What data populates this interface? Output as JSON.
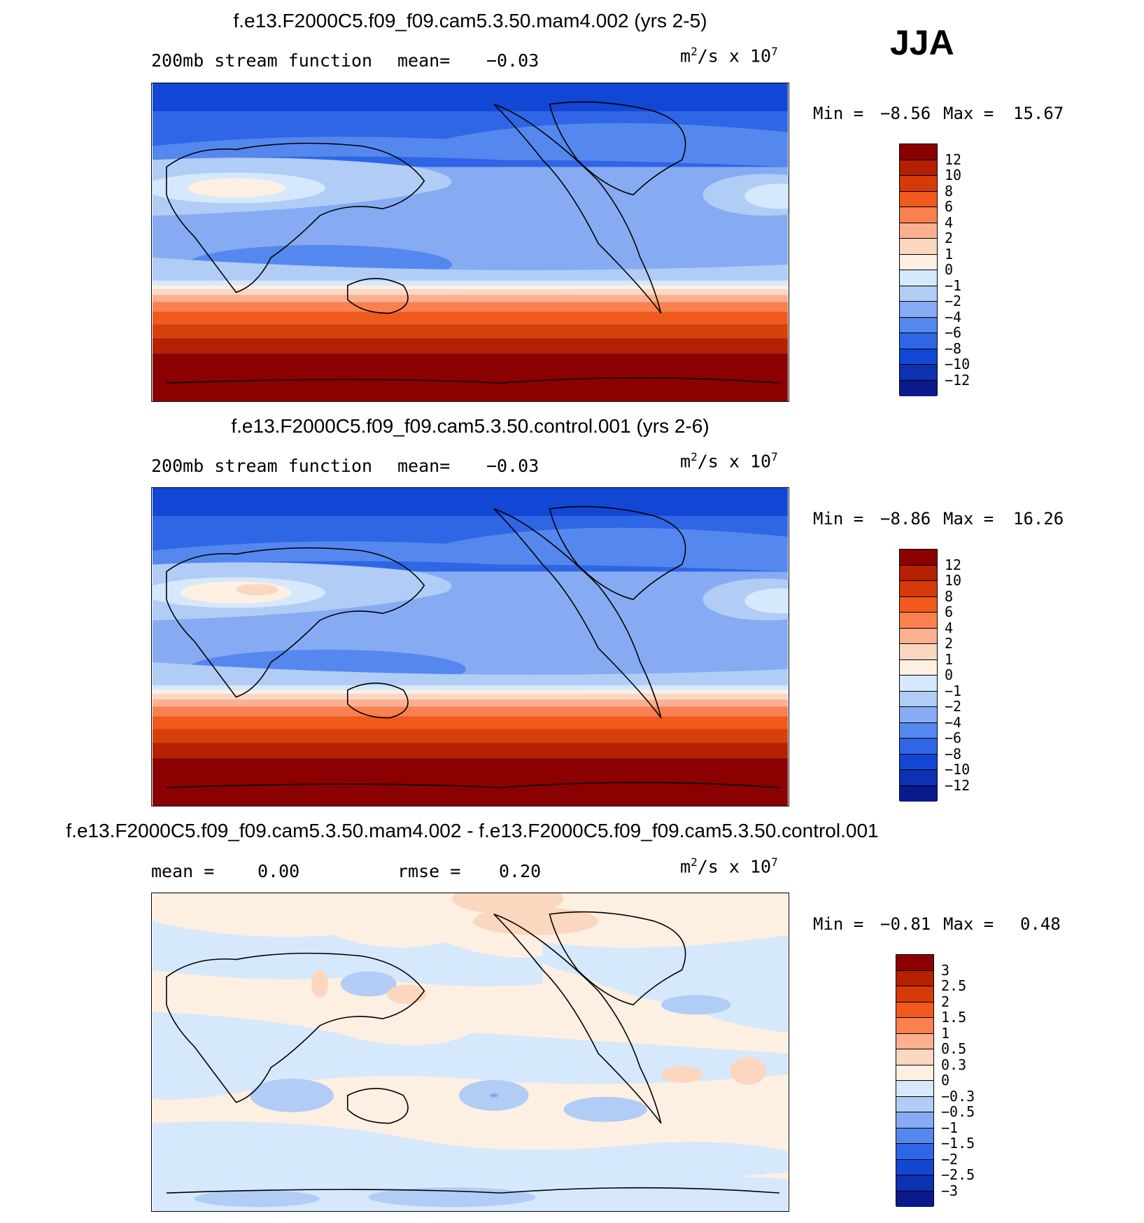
{
  "season": "JJA",
  "panels": [
    {
      "title": "f.e13.F2000C5.f09_f09.cam5.3.50.mam4.002 (yrs 2-5)",
      "left_label": "200mb stream function",
      "mid_label": "mean=",
      "mid_value": "−0.03",
      "units_base": "m",
      "units_sup": "2",
      "units_mid": "/s x 10",
      "units_sup2": "7",
      "min_label": "Min =",
      "min_value": "−8.56",
      "max_label": "Max =",
      "max_value": "15.67",
      "colorbar_labels": [
        "12",
        "10",
        "8",
        "6",
        "4",
        "2",
        "1",
        "0",
        "−1",
        "−2",
        "−4",
        "−6",
        "−8",
        "−10",
        "−12"
      ],
      "colorbar_colors": [
        "#8b0000",
        "#b52000",
        "#d63a08",
        "#f05a1c",
        "#fa8050",
        "#fcb090",
        "#fcd7bf",
        "#fdefe2",
        "#d6e8fb",
        "#b1cdf6",
        "#86abf3",
        "#5588ee",
        "#2f66e6",
        "#1247d6",
        "#0d31b0",
        "#0a1a8c"
      ]
    },
    {
      "title": "f.e13.F2000C5.f09_f09.cam5.3.50.control.001 (yrs 2-6)",
      "left_label": "200mb stream function",
      "mid_label": "mean=",
      "mid_value": "−0.03",
      "units_base": "m",
      "units_sup": "2",
      "units_mid": "/s x 10",
      "units_sup2": "7",
      "min_label": "Min =",
      "min_value": "−8.86",
      "max_label": "Max =",
      "max_value": "16.26",
      "colorbar_labels": [
        "12",
        "10",
        "8",
        "6",
        "4",
        "2",
        "1",
        "0",
        "−1",
        "−2",
        "−4",
        "−6",
        "−8",
        "−10",
        "−12"
      ],
      "colorbar_colors": [
        "#8b0000",
        "#b52000",
        "#d63a08",
        "#f05a1c",
        "#fa8050",
        "#fcb090",
        "#fcd7bf",
        "#fdefe2",
        "#d6e8fb",
        "#b1cdf6",
        "#86abf3",
        "#5588ee",
        "#2f66e6",
        "#1247d6",
        "#0d31b0",
        "#0a1a8c"
      ]
    },
    {
      "title": "f.e13.F2000C5.f09_f09.cam5.3.50.mam4.002 - f.e13.F2000C5.f09_f09.cam5.3.50.control.001",
      "left_label": "mean =",
      "left_value": "0.00",
      "mid_label": "rmse =",
      "mid_value": "0.20",
      "units_base": "m",
      "units_sup": "2",
      "units_mid": "/s x 10",
      "units_sup2": "7",
      "min_label": "Min =",
      "min_value": "−0.81",
      "max_label": "Max =",
      "max_value": "0.48",
      "colorbar_labels": [
        "3",
        "2.5",
        "2",
        "1.5",
        "1",
        "0.5",
        "0.3",
        "0",
        "−0.3",
        "−0.5",
        "−1",
        "−1.5",
        "−2",
        "−2.5",
        "−3"
      ],
      "colorbar_colors": [
        "#8b0000",
        "#b52000",
        "#d63a08",
        "#f05a1c",
        "#fa8050",
        "#fcb090",
        "#fcd7bf",
        "#fdefe2",
        "#d6e8fb",
        "#b1cdf6",
        "#86abf3",
        "#5588ee",
        "#2f66e6",
        "#1247d6",
        "#0d31b0",
        "#0a1a8c"
      ]
    }
  ]
}
